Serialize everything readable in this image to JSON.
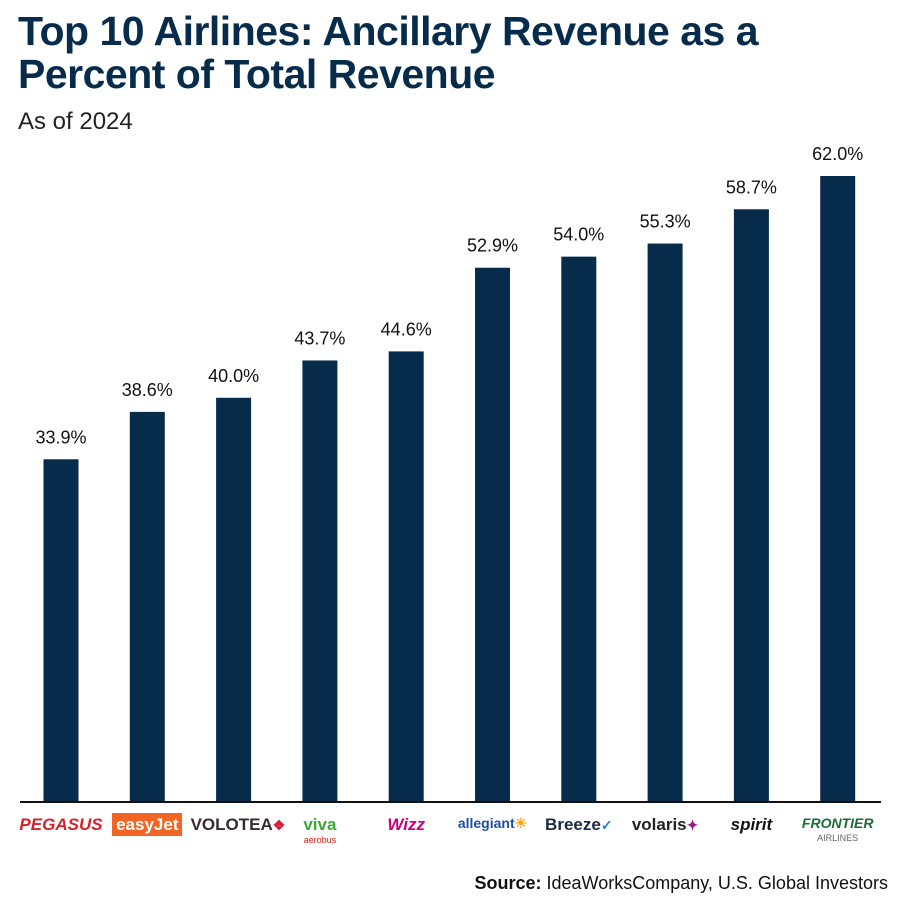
{
  "title": "Top 10 Airlines: Ancillary Revenue as a Percent of Total Revenue",
  "subtitle": "As of 2024",
  "source_label": "Source:",
  "source_text": "IdeaWorksCompany, U.S. Global Investors",
  "colors": {
    "bar": "#072c4b",
    "title": "#072c4b"
  },
  "chart_data": {
    "type": "bar",
    "title": "Top 10 Airlines: Ancillary Revenue as a Percent of Total Revenue",
    "subtitle": "As of 2024",
    "categories": [
      "Pegasus",
      "easyJet",
      "Volotea",
      "Viva Aerobus",
      "Wizz",
      "Allegiant",
      "Breeze",
      "Volaris",
      "Spirit",
      "Frontier Airlines"
    ],
    "values": [
      33.9,
      38.6,
      40.0,
      43.7,
      44.6,
      52.9,
      54.0,
      55.3,
      58.7,
      62.0
    ],
    "data_labels": [
      "33.9%",
      "38.6%",
      "40.0%",
      "43.7%",
      "44.6%",
      "52.9%",
      "54.0%",
      "55.3%",
      "58.7%",
      "62.0%"
    ],
    "ylim": [
      0,
      62
    ],
    "grid": false,
    "xlabel": "",
    "ylabel": ""
  },
  "logos": [
    {
      "text": "PEGASUS",
      "color": "#d8202a"
    },
    {
      "text": "easyJet",
      "color": "#ffffff",
      "bg": "#f26522"
    },
    {
      "text": "VOLOTEA",
      "color": "#3a2a2a",
      "mark": "❖",
      "markColor": "#d8203a"
    },
    {
      "text": "viva",
      "color": "#3aa935",
      "sub": "aerobus",
      "subColor": "#e2231a"
    },
    {
      "text": "Wizz",
      "color": "#c6007e"
    },
    {
      "text": "allegiant",
      "color": "#1f4f9a",
      "mark": "☀",
      "markColor": "#f5a623"
    },
    {
      "text": "Breeze",
      "color": "#1b2a44",
      "mark": "✓",
      "markColor": "#2a7de1"
    },
    {
      "text": "volaris",
      "color": "#222",
      "mark": "✦",
      "markColor": "#a0148c"
    },
    {
      "text": "spirit",
      "color": "#111"
    },
    {
      "text": "FRONTIER",
      "color": "#1e6b3a",
      "sub": "AIRLINES",
      "subColor": "#666"
    }
  ]
}
